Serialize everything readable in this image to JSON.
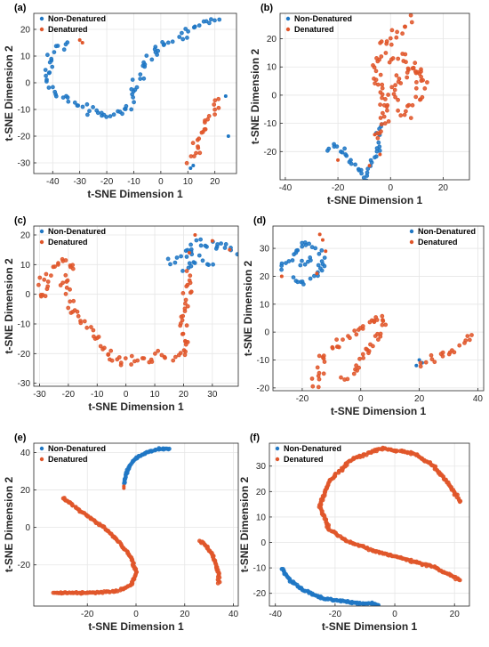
{
  "colors": {
    "non_denatured": "#1f77c4",
    "denatured": "#e0562a"
  },
  "chart_data": [
    {
      "panel": "(a)",
      "type": "scatter",
      "xlabel": "t-SNE Dimension 1",
      "ylabel": "t-SNE Dimension 2",
      "xlim": [
        -47,
        28
      ],
      "ylim": [
        -34,
        26
      ],
      "xticks": [
        -40,
        -30,
        -20,
        -10,
        0,
        10,
        20
      ],
      "yticks": [
        -30,
        -20,
        -10,
        0,
        10,
        20
      ],
      "grid": true,
      "legend_position": "top-left",
      "series": [
        {
          "name": "Non-Denatured",
          "color": "#1f77c4",
          "paths": [
            [
              [
                -40,
                10
              ],
              [
                -42,
                3
              ],
              [
                -40,
                -3
              ],
              [
                -35,
                -6
              ],
              [
                -30,
                -9
              ],
              [
                -25,
                -11
              ],
              [
                -20,
                -12
              ],
              [
                -15,
                -11
              ],
              [
                -11,
                -9
              ],
              [
                -10,
                -4
              ],
              [
                -8,
                2
              ],
              [
                -5,
                8
              ],
              [
                0,
                14
              ],
              [
                8,
                18
              ],
              [
                15,
                22
              ],
              [
                21,
                24
              ]
            ],
            [
              [
                -34,
                15
              ],
              [
                -38,
                13
              ],
              [
                -41,
                11
              ]
            ]
          ],
          "spread": 1.8,
          "points": [
            [
              11,
              -32
            ],
            [
              12,
              -31
            ],
            [
              25,
              -20
            ],
            [
              24,
              -5
            ]
          ]
        },
        {
          "name": "Denatured",
          "color": "#e0562a",
          "paths": [
            [
              [
                10,
                -30
              ],
              [
                13,
                -24
              ],
              [
                15,
                -20
              ],
              [
                17,
                -15
              ],
              [
                20,
                -10
              ],
              [
                22,
                -6
              ]
            ]
          ],
          "spread": 2.2,
          "points": [
            [
              -30,
              16
            ],
            [
              -29,
              15
            ]
          ]
        }
      ]
    },
    {
      "panel": "(b)",
      "type": "scatter",
      "xlabel": "t-SNE Dimension 1",
      "ylabel": "t-SNE Dimension 2",
      "xlim": [
        -42,
        30
      ],
      "ylim": [
        -30,
        29
      ],
      "xticks": [
        -40,
        -20,
        0,
        20
      ],
      "yticks": [
        -20,
        -10,
        0,
        10,
        20
      ],
      "grid": true,
      "legend_position": "top-left",
      "series": [
        {
          "name": "Non-Denatured",
          "color": "#1f77c4",
          "paths": [
            [
              [
                -24,
                -20
              ],
              [
                -22,
                -18
              ],
              [
                -18,
                -20
              ],
              [
                -15,
                -24
              ],
              [
                -12,
                -26
              ],
              [
                -10,
                -30
              ],
              [
                -8,
                -26
              ],
              [
                -6,
                -22
              ],
              [
                -4,
                -18
              ],
              [
                -5,
                -14
              ],
              [
                -3,
                -10
              ]
            ]
          ],
          "spread": 1.4,
          "points": []
        },
        {
          "name": "Denatured",
          "color": "#e0562a",
          "paths": [
            [
              [
                -4,
                -16
              ],
              [
                -2,
                -8
              ],
              [
                -3,
                0
              ],
              [
                -6,
                4
              ],
              [
                -5,
                10
              ],
              [
                -3,
                16
              ],
              [
                0,
                20
              ],
              [
                4,
                24
              ],
              [
                8,
                27
              ]
            ],
            [
              [
                -2,
                -4
              ],
              [
                2,
                2
              ],
              [
                6,
                8
              ],
              [
                10,
                10
              ],
              [
                12,
                4
              ],
              [
                10,
                -2
              ],
              [
                6,
                -6
              ],
              [
                2,
                -8
              ]
            ],
            [
              [
                0,
                12
              ],
              [
                4,
                14
              ],
              [
                8,
                10
              ],
              [
                12,
                6
              ]
            ]
          ],
          "spread": 2.6,
          "points": [
            [
              -20,
              -23
            ],
            [
              -8,
              -25
            ],
            [
              -6,
              -14
            ],
            [
              -4,
              -21
            ]
          ]
        }
      ]
    },
    {
      "panel": "(c)",
      "type": "scatter",
      "xlabel": "t-SNE Dimension 1",
      "ylabel": "t-SNE Dimension 2",
      "xlim": [
        -32,
        39
      ],
      "ylim": [
        -31,
        23
      ],
      "xticks": [
        -30,
        -20,
        -10,
        0,
        10,
        20,
        30
      ],
      "yticks": [
        -30,
        -20,
        -10,
        0,
        10,
        20
      ],
      "grid": true,
      "legend_position": "top-left",
      "series": [
        {
          "name": "Non-Denatured",
          "color": "#1f77c4",
          "paths": [
            [
              [
                14,
                10
              ],
              [
                18,
                12
              ],
              [
                22,
                14
              ],
              [
                24,
                18
              ],
              [
                28,
                17
              ],
              [
                32,
                16
              ],
              [
                35,
                17
              ],
              [
                38,
                14
              ]
            ],
            [
              [
                20,
                8
              ],
              [
                22,
                10
              ],
              [
                26,
                12
              ],
              [
                30,
                10
              ]
            ]
          ],
          "spread": 1.8,
          "points": []
        },
        {
          "name": "Denatured",
          "color": "#e0562a",
          "paths": [
            [
              [
                -30,
                3
              ],
              [
                -27,
                6
              ],
              [
                -24,
                10
              ],
              [
                -21,
                12
              ],
              [
                -19,
                8
              ],
              [
                -21,
                4
              ],
              [
                -20,
                -2
              ],
              [
                -18,
                -6
              ],
              [
                -15,
                -9
              ],
              [
                -12,
                -12
              ],
              [
                -8,
                -17
              ],
              [
                -5,
                -22
              ],
              [
                0,
                -23
              ],
              [
                5,
                -22
              ],
              [
                10,
                -21
              ],
              [
                15,
                -22
              ],
              [
                20,
                -20
              ],
              [
                20,
                -12
              ],
              [
                20,
                -5
              ],
              [
                21,
                2
              ],
              [
                22,
                8
              ]
            ],
            [
              [
                -30,
                -2
              ],
              [
                -28,
                0
              ],
              [
                -26,
                3
              ]
            ]
          ],
          "spread": 2.2,
          "points": [
            [
              22,
              14
            ],
            [
              24,
              20
            ],
            [
              30,
              18
            ],
            [
              36,
              15
            ]
          ]
        }
      ]
    },
    {
      "panel": "(d)",
      "type": "scatter",
      "xlabel": "t-SNE Dimension 1",
      "ylabel": "t-SNE Dimension 2",
      "xlim": [
        -30,
        42
      ],
      "ylim": [
        -21,
        38
      ],
      "xticks": [
        -20,
        0,
        20,
        40
      ],
      "yticks": [
        -20,
        -10,
        0,
        10,
        20,
        30
      ],
      "grid": true,
      "legend_position": "top-right",
      "series": [
        {
          "name": "Non-Denatured",
          "color": "#1f77c4",
          "paths": [
            [
              [
                -28,
                22
              ],
              [
                -25,
                25
              ],
              [
                -22,
                28
              ],
              [
                -20,
                32
              ],
              [
                -17,
                30
              ],
              [
                -14,
                28
              ],
              [
                -12,
                24
              ],
              [
                -16,
                20
              ],
              [
                -20,
                18
              ],
              [
                -24,
                20
              ]
            ],
            [
              [
                -22,
                24
              ],
              [
                -18,
                26
              ],
              [
                -15,
                24
              ]
            ]
          ],
          "spread": 1.8,
          "points": [
            [
              19,
              -12
            ],
            [
              20,
              -10
            ],
            [
              21,
              -11
            ]
          ]
        },
        {
          "name": "Denatured",
          "color": "#e0562a",
          "paths": [
            [
              [
                -16,
                -20
              ],
              [
                -14,
                -14
              ],
              [
                -12,
                -8
              ],
              [
                -8,
                -4
              ],
              [
                -4,
                -2
              ],
              [
                0,
                2
              ],
              [
                4,
                4
              ],
              [
                8,
                6
              ],
              [
                6,
                -2
              ],
              [
                2,
                -8
              ],
              [
                -2,
                -14
              ],
              [
                -6,
                -18
              ]
            ],
            [
              [
                20,
                -12
              ],
              [
                24,
                -10
              ],
              [
                28,
                -8
              ],
              [
                32,
                -6
              ],
              [
                35,
                -4
              ],
              [
                38,
                -1
              ]
            ]
          ],
          "spread": 2.2,
          "points": [
            [
              -14,
              35
            ],
            [
              -13,
              33
            ],
            [
              -12,
              29
            ],
            [
              -15,
              21
            ],
            [
              -27,
              20
            ]
          ]
        }
      ]
    },
    {
      "panel": "(e)",
      "type": "scatter",
      "xlabel": "t-SNE Dimension 1",
      "ylabel": "t-SNE Dimension 2",
      "xlim": [
        -42,
        42
      ],
      "ylim": [
        -42,
        45
      ],
      "xticks": [
        -20,
        0,
        20,
        40
      ],
      "yticks": [
        -20,
        0,
        20,
        40
      ],
      "grid": true,
      "legend_position": "top-left",
      "series": [
        {
          "name": "Non-Denatured",
          "color": "#1f77c4",
          "paths": [
            [
              [
                -5,
                23
              ],
              [
                -4,
                30
              ],
              [
                -1,
                36
              ],
              [
                4,
                40
              ],
              [
                10,
                42
              ],
              [
                14,
                42
              ]
            ]
          ],
          "spread": 0.5,
          "points": []
        },
        {
          "name": "Denatured",
          "color": "#e0562a",
          "paths": [
            [
              [
                -30,
                16
              ],
              [
                -22,
                8
              ],
              [
                -13,
                0
              ],
              [
                -7,
                -8
              ],
              [
                -2,
                -16
              ],
              [
                0,
                -24
              ],
              [
                -2,
                -31
              ],
              [
                -8,
                -34
              ],
              [
                -20,
                -35
              ],
              [
                -34,
                -35
              ]
            ],
            [
              [
                26,
                -7
              ],
              [
                29,
                -10
              ],
              [
                31,
                -14
              ],
              [
                33,
                -20
              ],
              [
                34,
                -25
              ],
              [
                34,
                -30
              ]
            ]
          ],
          "spread": 0.5,
          "points": [
            [
              -5,
              22
            ],
            [
              -5,
              21
            ]
          ]
        }
      ]
    },
    {
      "panel": "(f)",
      "type": "scatter",
      "xlabel": "t-SNE Dimension 1",
      "ylabel": "t-SNE Dimension 2",
      "xlim": [
        -42,
        25
      ],
      "ylim": [
        -25,
        39
      ],
      "xticks": [
        -40,
        -20,
        0,
        20
      ],
      "yticks": [
        -20,
        -10,
        0,
        10,
        20,
        30
      ],
      "grid": true,
      "legend_position": "top-left",
      "series": [
        {
          "name": "Non-Denatured",
          "color": "#1f77c4",
          "paths": [
            [
              [
                -38,
                -10
              ],
              [
                -35,
                -15
              ],
              [
                -30,
                -19
              ],
              [
                -24,
                -22
              ],
              [
                -18,
                -23
              ],
              [
                -12,
                -24
              ],
              [
                -7,
                -24
              ],
              [
                -5,
                -25
              ]
            ]
          ],
          "spread": 0.5,
          "points": []
        },
        {
          "name": "Denatured",
          "color": "#e0562a",
          "paths": [
            [
              [
                22,
                16
              ],
              [
                18,
                23
              ],
              [
                13,
                30
              ],
              [
                6,
                35
              ],
              [
                -4,
                37
              ],
              [
                -14,
                33
              ],
              [
                -22,
                24
              ],
              [
                -25,
                14
              ],
              [
                -22,
                5
              ],
              [
                -15,
                0
              ],
              [
                -5,
                -4
              ],
              [
                5,
                -7
              ],
              [
                14,
                -10
              ],
              [
                22,
                -15
              ]
            ]
          ],
          "spread": 0.5,
          "points": []
        }
      ]
    }
  ]
}
